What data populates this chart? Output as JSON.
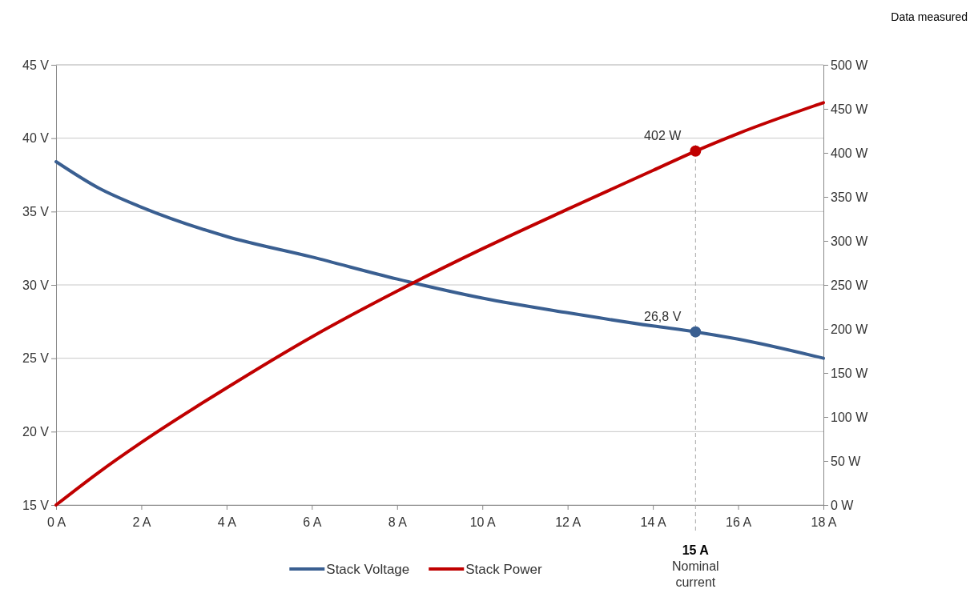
{
  "chart_data": {
    "type": "line",
    "annotations": [
      "Data measured"
    ],
    "x": [
      0,
      1,
      2,
      4,
      6,
      8,
      10,
      12,
      14,
      15,
      16,
      18
    ],
    "xlim": [
      0,
      18
    ],
    "xticks": [
      {
        "value": 0,
        "label": "0 A"
      },
      {
        "value": 2,
        "label": "2 A"
      },
      {
        "value": 4,
        "label": "4 A"
      },
      {
        "value": 6,
        "label": "6 A"
      },
      {
        "value": 8,
        "label": "8 A"
      },
      {
        "value": 10,
        "label": "10 A"
      },
      {
        "value": 12,
        "label": "12 A"
      },
      {
        "value": 14,
        "label": "14 A"
      },
      {
        "value": 16,
        "label": "16 A"
      },
      {
        "value": 18,
        "label": "18 A"
      }
    ],
    "ylim": [
      15,
      45
    ],
    "yticks": [
      {
        "value": 15,
        "label": "15 V"
      },
      {
        "value": 20,
        "label": "20 V"
      },
      {
        "value": 25,
        "label": "25 V"
      },
      {
        "value": 30,
        "label": "30 V"
      },
      {
        "value": 35,
        "label": "35 V"
      },
      {
        "value": 40,
        "label": "40 V"
      },
      {
        "value": 45,
        "label": "45 V"
      }
    ],
    "y2lim": [
      0,
      500
    ],
    "y2ticks": [
      {
        "value": 0,
        "label": "0 W"
      },
      {
        "value": 50,
        "label": "50 W"
      },
      {
        "value": 100,
        "label": "100 W"
      },
      {
        "value": 150,
        "label": "150 W"
      },
      {
        "value": 200,
        "label": "200 W"
      },
      {
        "value": 250,
        "label": "250 W"
      },
      {
        "value": 300,
        "label": "300 W"
      },
      {
        "value": 350,
        "label": "350 W"
      },
      {
        "value": 400,
        "label": "400 W"
      },
      {
        "value": 450,
        "label": "450 W"
      },
      {
        "value": 500,
        "label": "500 W"
      }
    ],
    "grid": "y",
    "legend": "bottom",
    "series": [
      {
        "name": "Stack Voltage",
        "type": "line",
        "color": "#3a5f91",
        "values": [
          38.4,
          36.6,
          35.3,
          33.3,
          31.9,
          30.4,
          29.1,
          28.1,
          27.2,
          26.8,
          26.3,
          25.0
        ]
      },
      {
        "name": "Stack Power",
        "type": "line",
        "axis": "y2",
        "color": "#c00000",
        "values": [
          0,
          37,
          71,
          133,
          191,
          243,
          291,
          336,
          380,
          402,
          422,
          457
        ]
      },
      {
        "type": "scatter",
        "color": "#3a5f91",
        "x": [
          15
        ],
        "values": [
          26.8
        ],
        "value_labels": [
          "26,8 V"
        ]
      },
      {
        "type": "scatter",
        "axis": "y2",
        "color": "#c00000",
        "x": [
          15
        ],
        "values": [
          402
        ],
        "value_labels": [
          "402 W"
        ]
      }
    ],
    "ref_lines": [
      {
        "axis": "x",
        "value": 15,
        "label": "15 A\nNominal\ncurrent",
        "color": "#a6a6a6",
        "line_style": "dashed"
      }
    ]
  }
}
